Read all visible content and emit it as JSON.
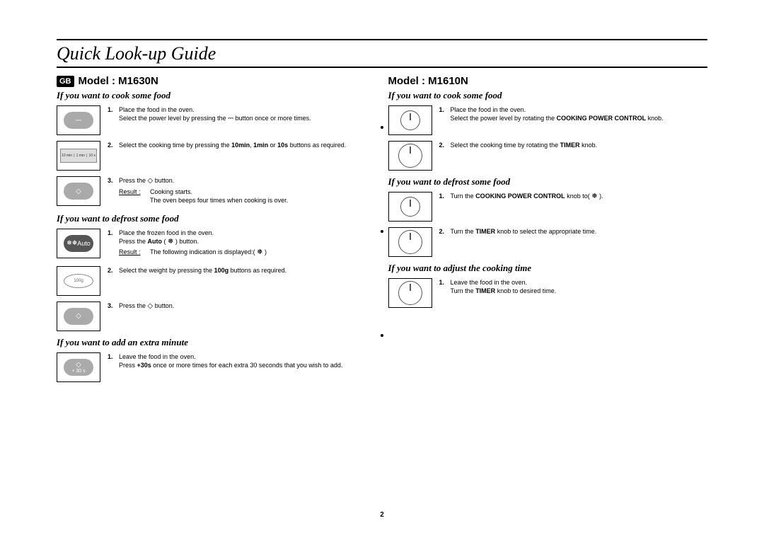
{
  "page": {
    "title": "Quick Look-up Guide",
    "gb": "GB",
    "number": "2"
  },
  "left": {
    "model": "Model : M1630N",
    "cook_head": "If you want to cook some food",
    "cook": {
      "s1": "Place the food in the oven.",
      "s1b_a": "Select the power level by pressing the ",
      "s1b_b": " button once or more times.",
      "s2_a": "Select the cooking time by pressing the ",
      "s2_b1": "10min",
      "s2_c": ", ",
      "s2_b2": "1min",
      "s2_d": " or ",
      "s2_b3": "10s",
      "s2_e": " buttons as required.",
      "s3_a": "Press the ",
      "s3_b": " button.",
      "res_label": "Result :",
      "res_a": "Cooking starts.",
      "res_b": "The oven beeps four times when cooking is over."
    },
    "defrost_head": "If you want to defrost some food",
    "defrost": {
      "s1": "Place the frozen food in the oven.",
      "s1b_a": "Press the ",
      "s1b_b": "Auto",
      "s1b_c": " ( ",
      "s1b_d": " ) button.",
      "res_label": "Result :",
      "res": "The following indication is displayed:( ",
      "res_end": " )",
      "s2_a": "Select the weight by pressing the ",
      "s2_b": "100g",
      "s2_c": " buttons as required.",
      "s3_a": "Press the ",
      "s3_b": " button."
    },
    "extra_head": "If you want to add an extra minute",
    "extra": {
      "s1": "Leave the food in the oven.",
      "s1b_a": "Press ",
      "s1b_b": "+30s",
      "s1b_c": " once or more times for each extra 30 seconds that you wish to add."
    }
  },
  "right": {
    "model": "Model : M1610N",
    "cook_head": "If you want to cook some food",
    "cook": {
      "s1": "Place the food in the oven.",
      "s1b_a": "Select the power level by rotating the ",
      "s1b_b": "COOKING POWER CONTROL",
      "s1b_c": " knob.",
      "s2_a": "Select the cooking time by rotating the ",
      "s2_b": "TIMER",
      "s2_c": " knob."
    },
    "defrost_head": "If you want to defrost some food",
    "defrost": {
      "s1_a": "Turn the ",
      "s1_b": "COOKING POWER CONTROL",
      "s1_c": " knob to( ",
      "s1_d": " ).",
      "s2_a": "Turn the ",
      "s2_b": "TIMER",
      "s2_c": " knob to select the appropriate time."
    },
    "adjust_head": "If you want to adjust the cooking time",
    "adjust": {
      "s1": "Leave the food in the oven.",
      "s1b_a": "Turn the ",
      "s1b_b": "TIMER",
      "s1b_c": " knob to desired time."
    }
  },
  "icons": {
    "power": "⎓",
    "start": "◇",
    "auto": "Auto",
    "defrost": "❅",
    "plus30": "+ 30 s",
    "hundredg": "100g",
    "timebtns": [
      "10 min",
      "1 min",
      "10 s"
    ]
  }
}
